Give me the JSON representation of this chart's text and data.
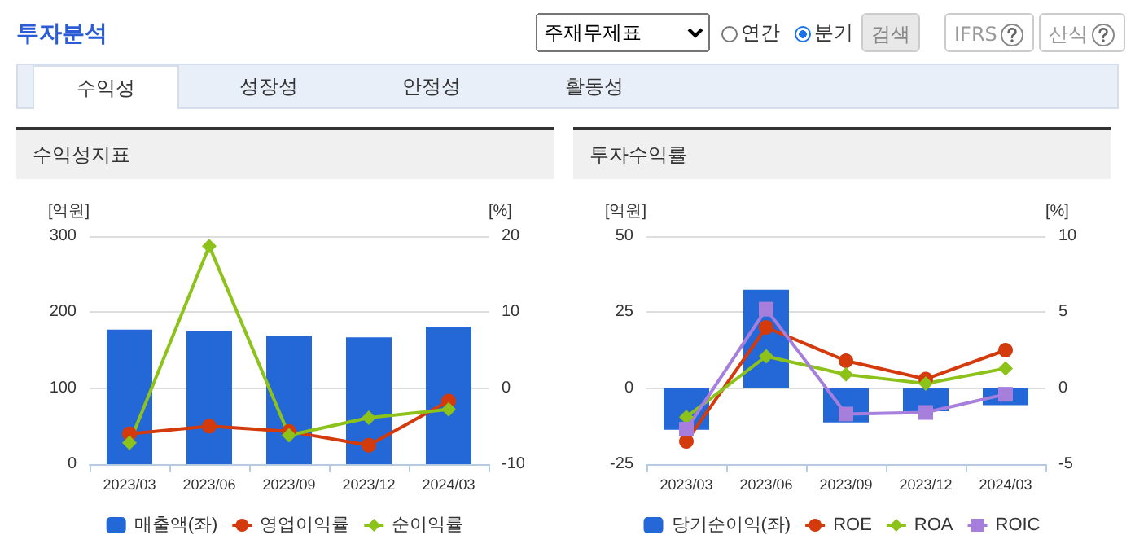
{
  "chart_data": [
    {
      "type": "bar",
      "title": "수익성지표",
      "ylabel": "[억원]",
      "y2label": "[%]",
      "annotations": [
        "투자분석",
        "주재무제표",
        "연간",
        "분기",
        "검색",
        "IFRS",
        "산식",
        "수익성",
        "성장성",
        "안정성",
        "활동성"
      ],
      "categories": [
        "2023/03",
        "2023/06",
        "2023/09",
        "2023/12",
        "2024/03"
      ],
      "series": [
        {
          "name": "매출액(좌)",
          "color": "#2468d8",
          "values": [
            177,
            175,
            169,
            167,
            181
          ]
        },
        {
          "name": "영업이익률",
          "type": "line",
          "axis": "y2",
          "marker": "circle",
          "color": "#d33a0c",
          "values": [
            -6.0,
            -5.0,
            -5.7,
            -7.5,
            -1.7
          ]
        },
        {
          "name": "순이익률",
          "type": "line",
          "axis": "y2",
          "marker": "diamond",
          "color": "#8cc21a",
          "values": [
            -7.2,
            18.7,
            -6.2,
            -3.9,
            -2.8
          ]
        }
      ],
      "ylim": [
        0,
        300
      ],
      "yticks": [
        0,
        100,
        200,
        300
      ],
      "y2lim": [
        -10,
        20
      ],
      "y2ticks": [
        -10,
        0,
        10,
        20
      ],
      "grid": "y",
      "legend": "bottom"
    },
    {
      "type": "bar",
      "title": "투자수익률",
      "ylabel": "[억원]",
      "y2label": "[%]",
      "categories": [
        "2023/03",
        "2023/06",
        "2023/09",
        "2023/12",
        "2024/03"
      ],
      "series": [
        {
          "name": "당기순이익(좌)",
          "color": "#2468d8",
          "values": [
            -13.7,
            32.4,
            -11.3,
            -7.6,
            -5.6
          ]
        },
        {
          "name": "ROE",
          "type": "line",
          "axis": "y2",
          "marker": "circle",
          "color": "#d33a0c",
          "values": [
            -3.5,
            4.0,
            1.8,
            0.6,
            2.5
          ]
        },
        {
          "name": "ROA",
          "type": "line",
          "axis": "y2",
          "marker": "diamond",
          "color": "#8cc21a",
          "values": [
            -1.9,
            2.1,
            0.9,
            0.3,
            1.3
          ]
        },
        {
          "name": "ROIC",
          "type": "line",
          "axis": "y2",
          "marker": "square",
          "color": "#a67fdc",
          "values": [
            -2.7,
            5.2,
            -1.7,
            -1.6,
            -0.4
          ]
        }
      ],
      "ylim": [
        -25,
        50
      ],
      "yticks": [
        -25,
        0,
        25,
        50
      ],
      "y2lim": [
        -5,
        10
      ],
      "y2ticks": [
        -5,
        0,
        5,
        10
      ],
      "grid": "y",
      "legend": "bottom"
    }
  ]
}
